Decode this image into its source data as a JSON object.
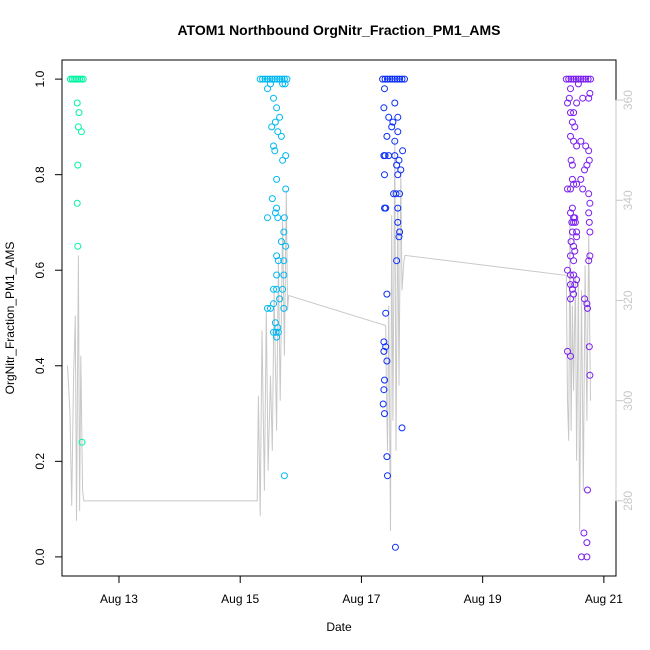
{
  "chart_data": {
    "type": "scatter",
    "title": "ATOM1 Northbound OrgNitr_Fraction_PM1_AMS",
    "xlabel": "Date",
    "ylabel": "OrgNitr_Fraction_PM1_AMS",
    "x_ticks": [
      {
        "label": "Aug 13",
        "day": 13
      },
      {
        "label": "Aug 15",
        "day": 15
      },
      {
        "label": "Aug 17",
        "day": 17
      },
      {
        "label": "Aug 19",
        "day": 19
      },
      {
        "label": "Aug 21",
        "day": 21
      }
    ],
    "xlim": [
      12.06,
      21.2
    ],
    "ylim": [
      -0.04,
      1.04
    ],
    "y_ticks": [
      0.0,
      0.2,
      0.4,
      0.6,
      0.8,
      1.0
    ],
    "y_tick_labels": [
      "0.0",
      "0.2",
      "0.4",
      "0.6",
      "0.8",
      "1.0"
    ],
    "y2lim": [
      265,
      368
    ],
    "y2_ticks": [
      280,
      300,
      320,
      340,
      360
    ],
    "y2_tick_labels": [
      "280",
      "300",
      "320",
      "340",
      "360"
    ],
    "grid": false,
    "colors": {
      "series1": "#00f5a0",
      "series2": "#00b8f0",
      "series3": "#0a2ef5",
      "series4": "#7a1ef0",
      "line": "#c8c8c8"
    },
    "series": [
      {
        "color_key": "series1",
        "points": [
          [
            12.2,
            1.0
          ],
          [
            12.23,
            1.0
          ],
          [
            12.26,
            1.0
          ],
          [
            12.29,
            1.0
          ],
          [
            12.32,
            1.0
          ],
          [
            12.35,
            1.0
          ],
          [
            12.38,
            1.0
          ],
          [
            12.41,
            1.0
          ],
          [
            12.31,
            0.95
          ],
          [
            12.34,
            0.93
          ],
          [
            12.38,
            0.89
          ],
          [
            12.33,
            0.9
          ],
          [
            12.32,
            0.82
          ],
          [
            12.31,
            0.74
          ],
          [
            12.32,
            0.65
          ],
          [
            12.39,
            0.24
          ]
        ]
      },
      {
        "color_key": "series2",
        "points": [
          [
            15.33,
            1.0
          ],
          [
            15.37,
            1.0
          ],
          [
            15.41,
            1.0
          ],
          [
            15.45,
            1.0
          ],
          [
            15.49,
            1.0
          ],
          [
            15.53,
            1.0
          ],
          [
            15.57,
            1.0
          ],
          [
            15.61,
            1.0
          ],
          [
            15.65,
            1.0
          ],
          [
            15.69,
            1.0
          ],
          [
            15.73,
            1.0
          ],
          [
            15.77,
            1.0
          ],
          [
            15.5,
            0.99
          ],
          [
            15.7,
            0.99
          ],
          [
            15.74,
            0.99
          ],
          [
            15.45,
            0.98
          ],
          [
            15.55,
            0.96
          ],
          [
            15.6,
            0.94
          ],
          [
            15.65,
            0.92
          ],
          [
            15.52,
            0.9
          ],
          [
            15.58,
            0.91
          ],
          [
            15.62,
            0.89
          ],
          [
            15.68,
            0.88
          ],
          [
            15.75,
            0.84
          ],
          [
            15.55,
            0.86
          ],
          [
            15.57,
            0.85
          ],
          [
            15.7,
            0.83
          ],
          [
            15.6,
            0.79
          ],
          [
            15.75,
            0.77
          ],
          [
            15.53,
            0.75
          ],
          [
            15.45,
            0.71
          ],
          [
            15.58,
            0.72
          ],
          [
            15.62,
            0.71
          ],
          [
            15.73,
            0.71
          ],
          [
            15.6,
            0.73
          ],
          [
            15.72,
            0.68
          ],
          [
            15.68,
            0.66
          ],
          [
            15.75,
            0.65
          ],
          [
            15.6,
            0.63
          ],
          [
            15.63,
            0.62
          ],
          [
            15.72,
            0.62
          ],
          [
            15.6,
            0.59
          ],
          [
            15.72,
            0.59
          ],
          [
            15.55,
            0.56
          ],
          [
            15.6,
            0.56
          ],
          [
            15.7,
            0.56
          ],
          [
            15.65,
            0.54
          ],
          [
            15.55,
            0.53
          ],
          [
            15.45,
            0.52
          ],
          [
            15.5,
            0.52
          ],
          [
            15.72,
            0.52
          ],
          [
            15.58,
            0.49
          ],
          [
            15.62,
            0.48
          ],
          [
            15.55,
            0.47
          ],
          [
            15.59,
            0.47
          ],
          [
            15.63,
            0.47
          ],
          [
            15.6,
            0.46
          ],
          [
            15.73,
            0.17
          ]
        ]
      },
      {
        "color_key": "series3",
        "points": [
          [
            17.35,
            1.0
          ],
          [
            17.39,
            1.0
          ],
          [
            17.43,
            1.0
          ],
          [
            17.47,
            1.0
          ],
          [
            17.51,
            1.0
          ],
          [
            17.55,
            1.0
          ],
          [
            17.59,
            1.0
          ],
          [
            17.63,
            1.0
          ],
          [
            17.67,
            1.0
          ],
          [
            17.71,
            1.0
          ],
          [
            17.38,
            0.98
          ],
          [
            17.37,
            0.94
          ],
          [
            17.55,
            0.95
          ],
          [
            17.45,
            0.92
          ],
          [
            17.52,
            0.91
          ],
          [
            17.6,
            0.92
          ],
          [
            17.5,
            0.9
          ],
          [
            17.6,
            0.89
          ],
          [
            17.55,
            0.87
          ],
          [
            17.42,
            0.88
          ],
          [
            17.68,
            0.85
          ],
          [
            17.37,
            0.84
          ],
          [
            17.39,
            0.84
          ],
          [
            17.45,
            0.84
          ],
          [
            17.55,
            0.84
          ],
          [
            17.62,
            0.83
          ],
          [
            17.58,
            0.82
          ],
          [
            17.65,
            0.81
          ],
          [
            17.6,
            0.8
          ],
          [
            17.38,
            0.8
          ],
          [
            17.53,
            0.76
          ],
          [
            17.57,
            0.76
          ],
          [
            17.63,
            0.76
          ],
          [
            17.38,
            0.73
          ],
          [
            17.4,
            0.73
          ],
          [
            17.6,
            0.73
          ],
          [
            17.6,
            0.7
          ],
          [
            17.63,
            0.68
          ],
          [
            17.62,
            0.67
          ],
          [
            17.58,
            0.62
          ],
          [
            17.42,
            0.55
          ],
          [
            17.4,
            0.51
          ],
          [
            17.37,
            0.45
          ],
          [
            17.4,
            0.44
          ],
          [
            17.37,
            0.43
          ],
          [
            17.42,
            0.41
          ],
          [
            17.38,
            0.37
          ],
          [
            17.37,
            0.35
          ],
          [
            17.36,
            0.32
          ],
          [
            17.38,
            0.3
          ],
          [
            17.67,
            0.27
          ],
          [
            17.42,
            0.21
          ],
          [
            17.43,
            0.17
          ],
          [
            17.56,
            0.02
          ]
        ]
      },
      {
        "color_key": "series4",
        "points": [
          [
            20.38,
            1.0
          ],
          [
            20.42,
            1.0
          ],
          [
            20.46,
            1.0
          ],
          [
            20.5,
            1.0
          ],
          [
            20.54,
            1.0
          ],
          [
            20.58,
            1.0
          ],
          [
            20.62,
            1.0
          ],
          [
            20.66,
            1.0
          ],
          [
            20.7,
            1.0
          ],
          [
            20.74,
            1.0
          ],
          [
            20.78,
            1.0
          ],
          [
            20.58,
            0.99
          ],
          [
            20.45,
            0.98
          ],
          [
            20.43,
            0.96
          ],
          [
            20.4,
            0.95
          ],
          [
            20.55,
            0.95
          ],
          [
            20.5,
            0.93
          ],
          [
            20.65,
            0.96
          ],
          [
            20.75,
            0.96
          ],
          [
            20.77,
            0.97
          ],
          [
            20.45,
            0.93
          ],
          [
            20.48,
            0.91
          ],
          [
            20.52,
            0.9
          ],
          [
            20.45,
            0.88
          ],
          [
            20.5,
            0.87
          ],
          [
            20.55,
            0.86
          ],
          [
            20.7,
            0.86
          ],
          [
            20.62,
            0.87
          ],
          [
            20.75,
            0.85
          ],
          [
            20.76,
            0.83
          ],
          [
            20.46,
            0.83
          ],
          [
            20.48,
            0.82
          ],
          [
            20.72,
            0.82
          ],
          [
            20.68,
            0.81
          ],
          [
            20.48,
            0.79
          ],
          [
            20.62,
            0.79
          ],
          [
            20.55,
            0.78
          ],
          [
            20.5,
            0.78
          ],
          [
            20.4,
            0.77
          ],
          [
            20.45,
            0.77
          ],
          [
            20.65,
            0.77
          ],
          [
            20.75,
            0.76
          ],
          [
            20.77,
            0.74
          ],
          [
            20.75,
            0.72
          ],
          [
            20.76,
            0.7
          ],
          [
            20.48,
            0.73
          ],
          [
            20.45,
            0.72
          ],
          [
            20.5,
            0.71
          ],
          [
            20.52,
            0.71
          ],
          [
            20.47,
            0.7
          ],
          [
            20.5,
            0.7
          ],
          [
            20.53,
            0.7
          ],
          [
            20.55,
            0.68
          ],
          [
            20.48,
            0.68
          ],
          [
            20.55,
            0.67
          ],
          [
            20.46,
            0.66
          ],
          [
            20.5,
            0.65
          ],
          [
            20.52,
            0.64
          ],
          [
            20.45,
            0.63
          ],
          [
            20.5,
            0.62
          ],
          [
            20.75,
            0.62
          ],
          [
            20.77,
            0.63
          ],
          [
            20.77,
            0.68
          ],
          [
            20.4,
            0.6
          ],
          [
            20.45,
            0.59
          ],
          [
            20.5,
            0.59
          ],
          [
            20.55,
            0.58
          ],
          [
            20.45,
            0.57
          ],
          [
            20.52,
            0.57
          ],
          [
            20.48,
            0.56
          ],
          [
            20.5,
            0.55
          ],
          [
            20.45,
            0.54
          ],
          [
            20.68,
            0.54
          ],
          [
            20.72,
            0.53
          ],
          [
            20.73,
            0.52
          ],
          [
            20.4,
            0.43
          ],
          [
            20.45,
            0.42
          ],
          [
            20.76,
            0.44
          ],
          [
            20.77,
            0.38
          ],
          [
            20.73,
            0.14
          ],
          [
            20.67,
            0.05
          ],
          [
            20.72,
            0.03
          ],
          [
            20.63,
            0.0
          ],
          [
            20.72,
            0.0
          ]
        ]
      }
    ],
    "secondary_line": {
      "color_key": "line",
      "points": [
        [
          12.15,
          307
        ],
        [
          12.19,
          298
        ],
        [
          12.22,
          279
        ],
        [
          12.25,
          304
        ],
        [
          12.28,
          317
        ],
        [
          12.3,
          276
        ],
        [
          12.33,
          329
        ],
        [
          12.35,
          278
        ],
        [
          12.37,
          309
        ],
        [
          12.4,
          282
        ],
        [
          12.42,
          280
        ],
        [
          15.28,
          280
        ],
        [
          15.3,
          301
        ],
        [
          15.33,
          277
        ],
        [
          15.36,
          314
        ],
        [
          15.4,
          282
        ],
        [
          15.43,
          318
        ],
        [
          15.46,
          286
        ],
        [
          15.5,
          305
        ],
        [
          15.53,
          290
        ],
        [
          15.56,
          322
        ],
        [
          15.6,
          294
        ],
        [
          15.63,
          328
        ],
        [
          15.66,
          300
        ],
        [
          15.7,
          336
        ],
        [
          15.73,
          309
        ],
        [
          15.76,
          342
        ],
        [
          15.78,
          318
        ],
        [
          15.8,
          321
        ],
        [
          17.4,
          315
        ],
        [
          17.41,
          304
        ],
        [
          17.43,
          290
        ],
        [
          17.45,
          319
        ],
        [
          17.48,
          274
        ],
        [
          17.5,
          337
        ],
        [
          17.52,
          296
        ],
        [
          17.55,
          352
        ],
        [
          17.57,
          290
        ],
        [
          17.6,
          339
        ],
        [
          17.62,
          303
        ],
        [
          17.65,
          346
        ],
        [
          17.67,
          322
        ],
        [
          17.7,
          328
        ],
        [
          17.72,
          329
        ],
        [
          20.38,
          325
        ],
        [
          20.4,
          300
        ],
        [
          20.42,
          292
        ],
        [
          20.44,
          336
        ],
        [
          20.46,
          294
        ],
        [
          20.48,
          319
        ],
        [
          20.5,
          302
        ],
        [
          20.53,
          325
        ],
        [
          20.55,
          288
        ],
        [
          20.58,
          324
        ],
        [
          20.6,
          274
        ],
        [
          20.63,
          322
        ],
        [
          20.66,
          282
        ],
        [
          20.69,
          327
        ],
        [
          20.72,
          296
        ],
        [
          20.75,
          333
        ],
        [
          20.78,
          300
        ]
      ]
    }
  }
}
